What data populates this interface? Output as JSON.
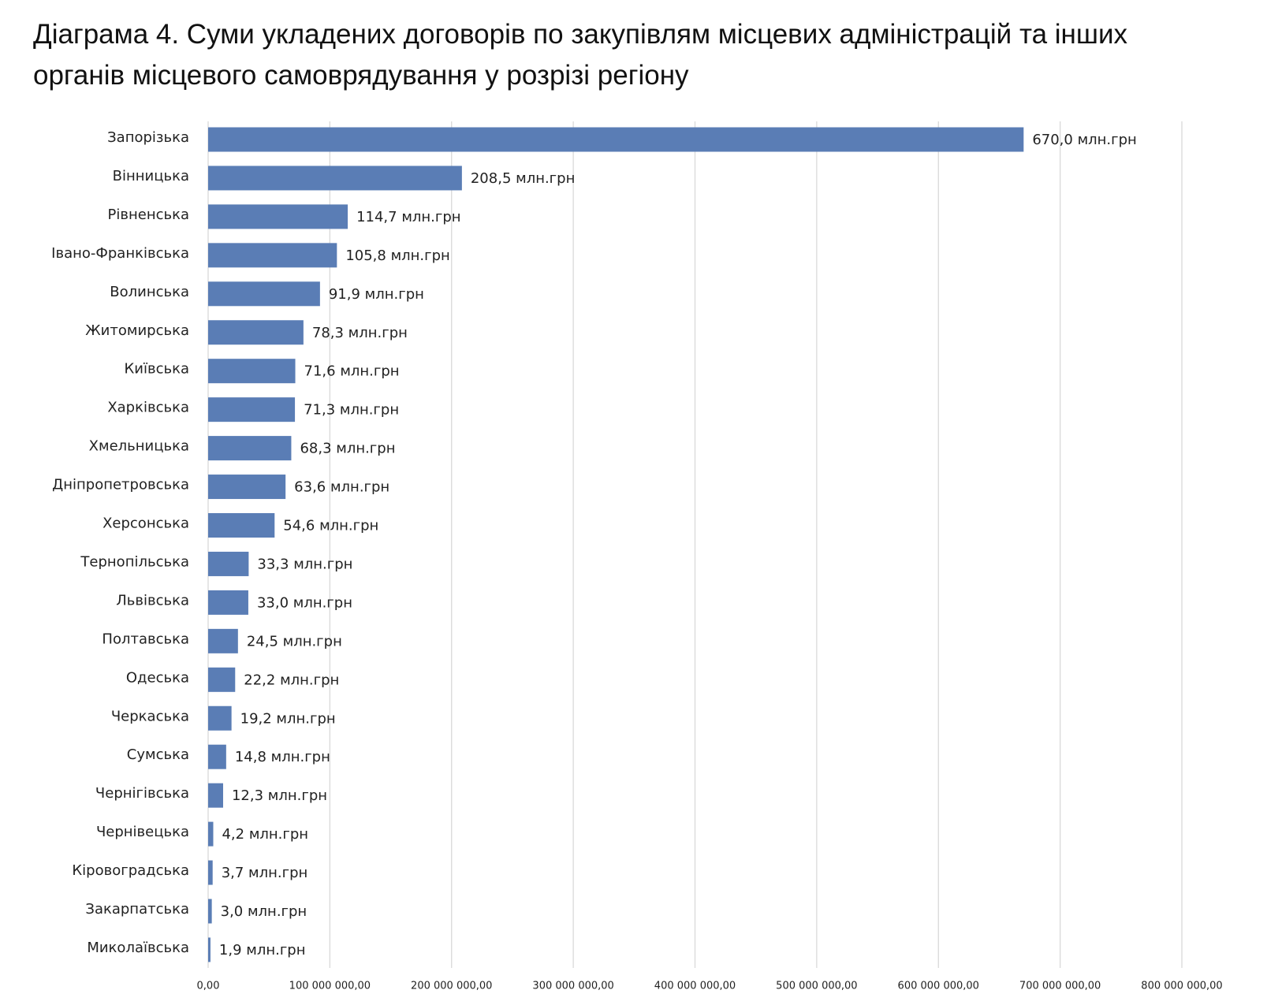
{
  "chart_data": {
    "type": "hbar",
    "title": "Діаграма 4. Суми укладених договорів по закупівлям місцевих адміністрацій та інших органів місцевого самоврядування у розрізі регіону",
    "categories": [
      "Запорізька",
      "Вінницька",
      "Рівненська",
      "Івано-Франківська",
      "Волинська",
      "Житомирська",
      "Київська",
      "Харківська",
      "Хмельницька",
      "Дніпропетровська",
      "Херсонська",
      "Тернопільська",
      "Львівська",
      "Полтавська",
      "Одеська",
      "Черкаська",
      "Сумська",
      "Чернігівська",
      "Чернівецька",
      "Кіровоградська",
      "Закарпатська",
      "Миколаївська"
    ],
    "values": [
      670000000,
      208500000,
      114700000,
      105800000,
      91900000,
      78300000,
      71600000,
      71300000,
      68300000,
      63600000,
      54600000,
      33300000,
      33000000,
      24500000,
      22200000,
      19200000,
      14800000,
      12300000,
      4200000,
      3700000,
      3000000,
      1900000
    ],
    "value_labels": [
      "670,0 млн.грн",
      "208,5 млн.грн",
      "114,7 млн.грн",
      "105,8 млн.грн",
      "91,9 млн.грн",
      "78,3 млн.грн",
      "71,6 млн.грн",
      "71,3 млн.грн",
      "68,3 млн.грн",
      "63,6 млн.грн",
      "54,6 млн.грн",
      "33,3 млн.грн",
      "33,0 млн.грн",
      "24,5 млн.грн",
      "22,2 млн.грн",
      "19,2 млн.грн",
      "14,8 млн.грн",
      "12,3 млн.грн",
      "4,2 млн.грн",
      "3,7 млн.грн",
      "3,0 млн.грн",
      "1,9 млн.грн"
    ],
    "color": "#5a7db5",
    "xlim": [
      0,
      800000000
    ],
    "xticks": [
      {
        "value": 0,
        "label": "0,00"
      },
      {
        "value": 100000000,
        "label": "100 000 000,00"
      },
      {
        "value": 200000000,
        "label": "200 000 000,00"
      },
      {
        "value": 300000000,
        "label": "300 000 000,00"
      },
      {
        "value": 400000000,
        "label": "400 000 000,00"
      },
      {
        "value": 500000000,
        "label": "500 000 000,00"
      },
      {
        "value": 600000000,
        "label": "600 000 000,00"
      },
      {
        "value": 700000000,
        "label": "700 000 000,00"
      },
      {
        "value": 800000000,
        "label": "800 000 000,00"
      }
    ],
    "grid": true
  }
}
